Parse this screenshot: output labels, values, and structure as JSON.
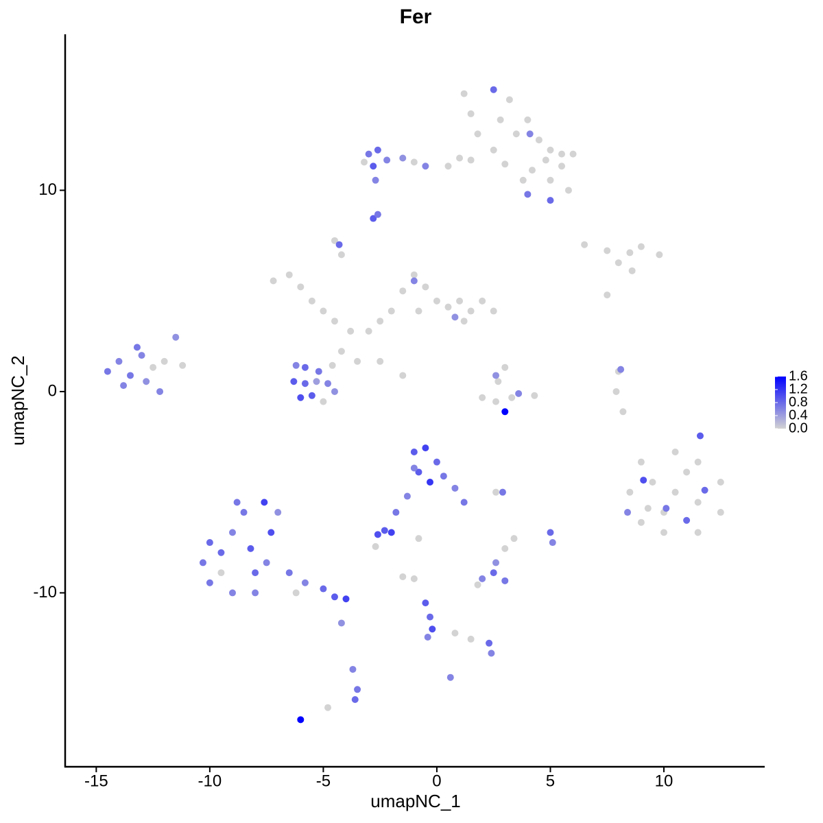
{
  "chart_data": {
    "type": "scatter",
    "title": "Fer",
    "x_label": "umapNC_1",
    "y_label": "umapNC_2",
    "xlim": [
      -16.37,
      14.44
    ],
    "ylim": [
      -18.64,
      17.75
    ],
    "xticks": [
      -15,
      -10,
      -5,
      0,
      5,
      10
    ],
    "yticks": [
      -10,
      0,
      10
    ],
    "color_low": "#d3d3d3",
    "color_high": "#0000ff",
    "colorlim": [
      0,
      1.6
    ],
    "colorticks": [
      {
        "value": 0,
        "label": "0.0"
      },
      {
        "value": 0.4,
        "label": "0.4"
      },
      {
        "value": 0.8,
        "label": "0.8"
      },
      {
        "value": 1.2,
        "label": "1.2"
      },
      {
        "value": 1.6,
        "label": "1.6"
      }
    ],
    "x": [
      1.2,
      2.5,
      3.2,
      1.5,
      2.8,
      1.8,
      2.5,
      3.5,
      4.0,
      4.5,
      5.0,
      5.5,
      3.0,
      1.5,
      0.5,
      4.2,
      5.0,
      5.8,
      3.8,
      4.8,
      1.0,
      5.5,
      6.0,
      4.1,
      5.0,
      4.0,
      -3.0,
      -2.6,
      -2.2,
      -2.8,
      -1.5,
      -1.0,
      -3.2,
      -0.5,
      -2.7,
      -2.8,
      -2.6,
      -7.2,
      -6.5,
      -6.0,
      -5.5,
      -5.0,
      -4.5,
      -3.8,
      -3.0,
      -2.5,
      -2.0,
      -1.5,
      -1.0,
      -0.5,
      0.0,
      0.5,
      1.0,
      1.5,
      2.0,
      2.5,
      -4.2,
      -3.5,
      -4.5,
      -2.5,
      -1.5,
      -4.2,
      -0.8,
      1.2,
      -1.0,
      0.8,
      -4.3,
      -6.3,
      -5.8,
      -5.2,
      -4.8,
      -5.5,
      -6.0,
      -4.5,
      -5.3,
      -6.2,
      -4.6,
      -5.0,
      -5.8,
      -14.5,
      -14.0,
      -13.5,
      -13.0,
      -12.8,
      -13.8,
      -12.5,
      -12.0,
      -11.5,
      -12.2,
      -13.2,
      -11.2,
      6.5,
      7.5,
      8.5,
      9.0,
      9.8,
      8.0,
      7.5,
      8.6,
      2.0,
      2.6,
      3.3,
      4.3,
      2.7,
      3.0,
      3.6,
      3.0,
      2.6,
      8.0,
      7.9,
      8.2,
      8.1,
      9,
      10.5,
      11.5,
      12.5,
      12.5,
      11.5,
      10,
      9,
      8.5,
      9.5,
      10.5,
      11.5,
      10,
      11,
      9.3,
      10.1,
      9.1,
      11.8,
      11.6,
      8.4,
      11.0,
      -10,
      -9.5,
      -9,
      -8.5,
      -8,
      -9,
      -10.3,
      -8.2,
      -7.5,
      -7.3,
      -8.8,
      -7.6,
      -6.5,
      -5.8,
      -5,
      -4.5,
      -4.0,
      -6.2,
      -9.5,
      -8,
      -4.2,
      -3.7,
      -3.5,
      -3.6,
      -4.8,
      -6,
      -10.0,
      -7.0,
      -1,
      -0.5,
      0,
      0.3,
      -0.8,
      -0.3,
      -1.0,
      0.8,
      1.2,
      -1.3,
      -1.8,
      -2.3,
      -2.6,
      -2.0,
      -2.7,
      -0.8,
      2.9,
      2.6,
      2.0,
      2.5,
      3.0,
      1.8,
      2.6,
      3.0,
      3.4,
      5.0,
      5.1,
      -1.0,
      -0.5,
      -0.3,
      -0.2,
      -0.4,
      0.8,
      1.5,
      2.3,
      2.4,
      0.6,
      -1.5
    ],
    "y": [
      14.8,
      15.0,
      14.5,
      13.8,
      13.5,
      12.8,
      12.0,
      12.8,
      13.5,
      12.5,
      12.0,
      11.8,
      11.3,
      11.5,
      11.2,
      11.0,
      10.5,
      10.0,
      10.5,
      11.5,
      11.6,
      11.2,
      11.8,
      12.8,
      9.5,
      9.8,
      11.8,
      12.0,
      11.5,
      11.2,
      11.6,
      11.4,
      11.4,
      11.2,
      10.5,
      8.6,
      8.8,
      5.5,
      5.8,
      5.2,
      4.5,
      4.0,
      3.5,
      3.0,
      3.0,
      3.5,
      4.0,
      5.0,
      5.8,
      5.2,
      4.5,
      4.2,
      4.5,
      4.0,
      4.5,
      4.0,
      2.0,
      1.5,
      7.5,
      1.5,
      0.8,
      6.8,
      4.0,
      3.5,
      5.5,
      3.7,
      7.3,
      0.5,
      1.2,
      1.0,
      0.4,
      -0.2,
      -0.3,
      0,
      0.5,
      1.3,
      1.3,
      -0.5,
      0.4,
      1.0,
      1.5,
      0.8,
      1.8,
      0.5,
      0.3,
      1.2,
      1.5,
      2.7,
      0,
      2.2,
      1.3,
      7.3,
      7.0,
      6.9,
      7.2,
      6.8,
      6.4,
      4.8,
      6.0,
      -0.3,
      -0.5,
      -0.3,
      -0.2,
      0.5,
      1.2,
      -0.1,
      -1.0,
      0.8,
      1.0,
      0.0,
      -1.0,
      1.1,
      -3.5,
      -3,
      -3.5,
      -4.5,
      -6,
      -7,
      -7,
      -6.5,
      -5,
      -4.5,
      -5,
      -5.5,
      -6,
      -4,
      -5.8,
      -5.8,
      -4.4,
      -4.9,
      -2.2,
      -6.0,
      -6.4,
      -9.5,
      -8,
      -7,
      -6,
      -9,
      -10,
      -8.5,
      -7.8,
      -8.5,
      -7,
      -5.5,
      -5.5,
      -9,
      -9.5,
      -9.8,
      -10.2,
      -10.3,
      -10,
      -9,
      -10,
      -11.5,
      -13.8,
      -14.8,
      -15.3,
      -15.7,
      -16.3,
      -7.5,
      -6.0,
      -3,
      -2.8,
      -3.5,
      -4.2,
      -4,
      -4.5,
      -3.8,
      -4.8,
      -5.5,
      -5.2,
      -6.0,
      -6.9,
      -7.1,
      -7.0,
      -7.7,
      -7.3,
      -5,
      -5.0,
      -9.3,
      -9.0,
      -9.4,
      -9.6,
      -8.5,
      -7.8,
      -7.3,
      -7.0,
      -7.5,
      -9.3,
      -10.5,
      -11.2,
      -11.8,
      -12.2,
      -12.0,
      -12.3,
      -12.5,
      -13.0,
      -14.2,
      -9.2
    ],
    "values": [
      0,
      0.8,
      0,
      0,
      0,
      0,
      0,
      0,
      0,
      0,
      0,
      0,
      0,
      0,
      0,
      0,
      0,
      0,
      0,
      0,
      0,
      0,
      0,
      0.6,
      0.8,
      0.7,
      0.7,
      0.8,
      0.6,
      0.9,
      0.5,
      0,
      0,
      0.6,
      0.6,
      0.9,
      0.7,
      0,
      0,
      0,
      0,
      0,
      0,
      0,
      0,
      0,
      0,
      0,
      0,
      0,
      0,
      0,
      0,
      0,
      0,
      0,
      0,
      0,
      0,
      0,
      0,
      0,
      0,
      0,
      0.6,
      0.5,
      0.8,
      0.9,
      0.8,
      0.7,
      0.6,
      0.9,
      1.0,
      0.5,
      0.4,
      0.6,
      0,
      0,
      0.8,
      0.7,
      0.6,
      0.7,
      0.6,
      0.5,
      0.6,
      0,
      0,
      0.5,
      0.6,
      0.7,
      0,
      0,
      0,
      0,
      0,
      0,
      0,
      0,
      0,
      0,
      0,
      0,
      0,
      0,
      0,
      0.6,
      1.6,
      0.5,
      0,
      0,
      0,
      0.6,
      0,
      0,
      0,
      0,
      0,
      0,
      0,
      0,
      0,
      0,
      0,
      0,
      0,
      0,
      0,
      0.7,
      1.0,
      0.8,
      0.9,
      0.6,
      0.8,
      0.7,
      0.8,
      0.6,
      0.7,
      0.8,
      0.6,
      0.7,
      0.9,
      0.6,
      1.0,
      0.7,
      1.1,
      0.7,
      0.6,
      0.8,
      0.9,
      1.1,
      0,
      0,
      0.6,
      0.5,
      0.6,
      0.7,
      0.8,
      0,
      1.6,
      0.8,
      0.5,
      0.9,
      1.1,
      0.8,
      0.7,
      0.9,
      1.2,
      0.6,
      0.6,
      0.7,
      0.6,
      0.7,
      0.9,
      1.0,
      1.1,
      0,
      0,
      0.7,
      0,
      0.6,
      0.8,
      0.7,
      0,
      0.5,
      0,
      0,
      0.8,
      0.6,
      0,
      0.9,
      0.8,
      1.0,
      0.6,
      0,
      0,
      0.8,
      0.6,
      0.6,
      0
    ]
  }
}
